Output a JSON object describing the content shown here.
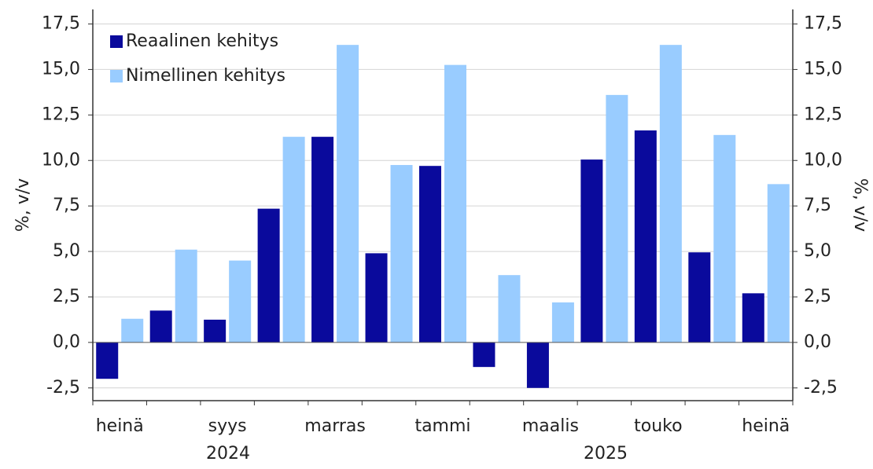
{
  "chart_data": {
    "type": "bar",
    "categories": [
      "heinä",
      null,
      "syys",
      null,
      "marras",
      null,
      "tammi",
      null,
      "maalis",
      null,
      "touko",
      null,
      "heinä"
    ],
    "annotations": [
      "2024",
      "2025"
    ],
    "series": [
      {
        "name": "Reaalinen kehitys",
        "color": "#0a0a9c",
        "values": [
          -2.0,
          1.75,
          1.25,
          7.35,
          11.3,
          4.9,
          9.7,
          -1.35,
          -2.5,
          10.05,
          11.65,
          4.95,
          2.7
        ]
      },
      {
        "name": "Nimellinen kehitys",
        "color": "#99ccff",
        "values": [
          1.3,
          5.1,
          4.5,
          11.3,
          16.35,
          9.75,
          15.25,
          3.7,
          2.2,
          13.6,
          16.35,
          11.4,
          8.7
        ]
      }
    ],
    "ylabel": "%, v/v",
    "y2label": "%, v/v",
    "ylim": [
      -3.2,
      18.3
    ],
    "yticks": [
      {
        "value": -2.5,
        "label": "-2,5"
      },
      {
        "value": 0,
        "label": "0,0"
      },
      {
        "value": 2.5,
        "label": "2,5"
      },
      {
        "value": 5,
        "label": "5,0"
      },
      {
        "value": 7.5,
        "label": "7,5"
      },
      {
        "value": 10,
        "label": "10,0"
      },
      {
        "value": 12.5,
        "label": "12,5"
      },
      {
        "value": 15,
        "label": "15,0"
      },
      {
        "value": 17.5,
        "label": "17,5"
      }
    ],
    "y2lim": [
      -3.2,
      18.3
    ],
    "y2ticks": [
      {
        "value": -2.5,
        "label": "-2,5"
      },
      {
        "value": 0,
        "label": "0,0"
      },
      {
        "value": 2.5,
        "label": "2,5"
      },
      {
        "value": 5,
        "label": "5,0"
      },
      {
        "value": 7.5,
        "label": "7,5"
      },
      {
        "value": 10,
        "label": "10,0"
      },
      {
        "value": 12.5,
        "label": "12,5"
      },
      {
        "value": 15,
        "label": "15,0"
      },
      {
        "value": 17.5,
        "label": "17,5"
      }
    ],
    "grid": true,
    "legend": "upper left"
  }
}
